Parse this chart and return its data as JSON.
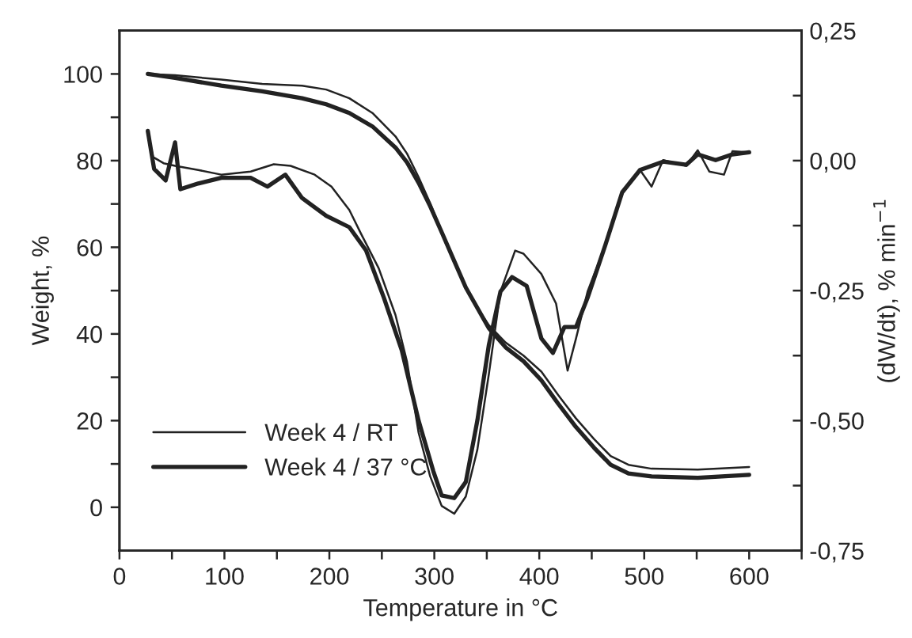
{
  "chart_data": {
    "type": "line",
    "xlabel": "Temperature in °C",
    "ylabel": "Weight, %",
    "y2label": "(dW/dt), % min$^{−1}$",
    "xlim": [
      0,
      650
    ],
    "ylim": [
      -10,
      110
    ],
    "y2lim": [
      -0.75,
      0.25
    ],
    "xticks": [
      0,
      {
        "value": 50,
        "label": null
      },
      100,
      {
        "value": 150,
        "label": null
      },
      200,
      {
        "value": 250,
        "label": null
      },
      300,
      {
        "value": 350,
        "label": null
      },
      400,
      {
        "value": 450,
        "label": null
      },
      500,
      {
        "value": 550,
        "label": null
      },
      600,
      {
        "value": 650,
        "label": null
      }
    ],
    "yticks": [
      0,
      {
        "value": 10,
        "label": null
      },
      20,
      {
        "value": 30,
        "label": null
      },
      40,
      {
        "value": 50,
        "label": null
      },
      60,
      {
        "value": 70,
        "label": null
      },
      80,
      {
        "value": 90,
        "label": null
      },
      100
    ],
    "y2ticks": [
      {
        "value": -0.75,
        "label": "-0,75"
      },
      {
        "value": -0.625,
        "label": null
      },
      {
        "value": -0.5,
        "label": "-0,50"
      },
      {
        "value": -0.375,
        "label": null
      },
      {
        "value": -0.25,
        "label": "-0,25"
      },
      {
        "value": -0.125,
        "label": null
      },
      {
        "value": 0,
        "label": "0,00"
      },
      {
        "value": 0.125,
        "label": null
      },
      {
        "value": 0.25,
        "label": "0,25"
      }
    ],
    "grid": false,
    "legend": "bottom left",
    "line_style": "solid",
    "marker": "none",
    "series": [
      {
        "name": "Week 4 / RT",
        "color": "#222222",
        "x": [
          27,
          53,
          97,
          136,
          174,
          197,
          219,
          241,
          263,
          274,
          285,
          296,
          307,
          319,
          330,
          341,
          352,
          368,
          385,
          402,
          418,
          435,
          452,
          468,
          485,
          507,
          551,
          600
        ],
        "values": [
          100,
          99.7,
          98.7,
          97.7,
          97.3,
          96.4,
          94.4,
          91,
          85.6,
          81.6,
          76.2,
          70.2,
          63.5,
          56.8,
          50.7,
          46,
          42,
          38,
          35,
          31.3,
          25.9,
          20.5,
          15.8,
          11.8,
          9.8,
          8.9,
          8.7,
          9.3
        ]
      },
      {
        "name": "Week 4 / 37 °C",
        "color": "#222222",
        "x": [
          27,
          53,
          97,
          136,
          174,
          197,
          219,
          241,
          263,
          274,
          285,
          296,
          307,
          319,
          330,
          341,
          352,
          368,
          385,
          402,
          418,
          435,
          452,
          468,
          485,
          507,
          551,
          600
        ],
        "values": [
          100,
          99.1,
          97.3,
          96,
          94.4,
          93,
          91,
          87.9,
          83,
          79.6,
          74.9,
          69.5,
          63.5,
          56.8,
          50.7,
          46,
          41.3,
          36.9,
          33.7,
          29.3,
          23.9,
          18.5,
          13.8,
          9.8,
          7.8,
          7.1,
          6.8,
          7.5
        ]
      },
      {
        "axis": "y2",
        "color": "#222222",
        "x": [
          27,
          32,
          42,
          53,
          75,
          97,
          125,
          147,
          163,
          186,
          202,
          219,
          230,
          247,
          263,
          274,
          285,
          296,
          307,
          319,
          330,
          341,
          352,
          363,
          377,
          385,
          402,
          416,
          427,
          435,
          446,
          463,
          479,
          496,
          507,
          518,
          540,
          551,
          562,
          576,
          584,
          600
        ],
        "values": [
          0.054,
          0.007,
          -0.005,
          -0.01,
          -0.018,
          -0.027,
          -0.021,
          -0.007,
          -0.01,
          -0.027,
          -0.05,
          -0.095,
          -0.14,
          -0.207,
          -0.297,
          -0.387,
          -0.523,
          -0.607,
          -0.664,
          -0.679,
          -0.646,
          -0.556,
          -0.41,
          -0.252,
          -0.173,
          -0.179,
          -0.218,
          -0.275,
          -0.404,
          -0.342,
          -0.252,
          -0.162,
          -0.061,
          -0.018,
          -0.05,
          0.001,
          -0.01,
          0.02,
          -0.021,
          -0.027,
          0.018,
          0.016
        ]
      },
      {
        "axis": "y2",
        "color": "#222222",
        "x": [
          27,
          33,
          44,
          53,
          58,
          75,
          97,
          125,
          141,
          158,
          174,
          197,
          219,
          235,
          252,
          269,
          285,
          299,
          307,
          319,
          330,
          341,
          352,
          363,
          374,
          388,
          402,
          413,
          424,
          435,
          446,
          463,
          479,
          496,
          518,
          540,
          551,
          568,
          584,
          600
        ],
        "values": [
          0.057,
          -0.016,
          -0.038,
          0.035,
          -0.055,
          -0.044,
          -0.033,
          -0.033,
          -0.05,
          -0.027,
          -0.072,
          -0.106,
          -0.128,
          -0.173,
          -0.264,
          -0.365,
          -0.5,
          -0.597,
          -0.644,
          -0.649,
          -0.618,
          -0.5,
          -0.354,
          -0.252,
          -0.224,
          -0.241,
          -0.342,
          -0.37,
          -0.32,
          -0.32,
          -0.264,
          -0.162,
          -0.061,
          -0.018,
          -0.002,
          -0.008,
          0.012,
          0.001,
          0.012,
          0.016
        ]
      }
    ]
  }
}
